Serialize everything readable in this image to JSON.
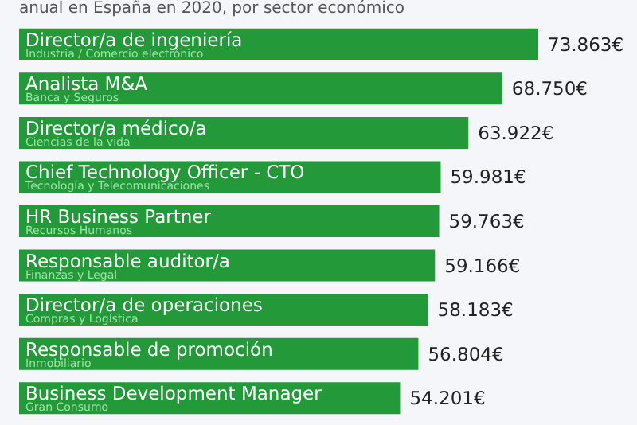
{
  "chart_data": {
    "type": "bar",
    "orientation": "horizontal",
    "subtitle": "anual en España en 2020, por sector económico",
    "categories": [
      "Director/a de ingeniería\nIndustria / Comercio electrónico",
      "Analista M&A\nBanca y Seguros",
      "Director/a médico/a\nCiencias de la vida",
      "Chief Technology Officer - CTO\nTecnología y Telecomunicaciones",
      "HR Business Partner\nRecursos Humanos",
      "Responsable auditor/a\nFinanzas y Legal",
      "Director/a de operaciones\nCompras y Logística",
      "Responsable de promoción\nInmobiliario",
      "Business Development Manager\nGran Consumo"
    ],
    "values": [
      73863,
      68750,
      63922,
      59981,
      59763,
      59166,
      58183,
      56804,
      54201
    ],
    "value_labels": [
      "73.863€",
      "68.750€",
      "63.922€",
      "59.981€",
      "59.763€",
      "59.166€",
      "58.183€",
      "56.804€",
      "54.201€"
    ],
    "color": "#23993a"
  }
}
